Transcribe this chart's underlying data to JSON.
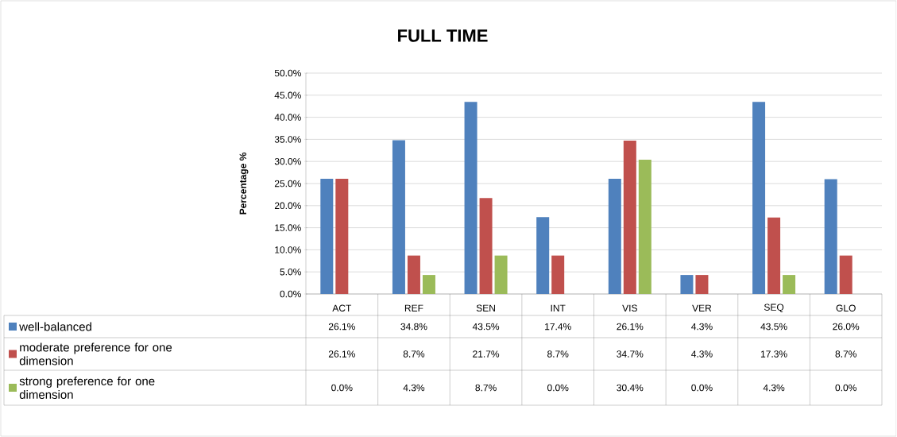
{
  "chart_data": {
    "type": "bar",
    "title": "FULL TIME",
    "ylabel": "Percentage %",
    "categories": [
      "ACT",
      "REF",
      "SEN",
      "INT",
      "VIS",
      "VER",
      "SEQ",
      "GLO"
    ],
    "series": [
      {
        "name": "well-balanced",
        "color": "#4f81bd",
        "values": [
          26.1,
          34.8,
          43.5,
          17.4,
          26.1,
          4.3,
          43.5,
          26.0
        ],
        "value_labels": [
          "26.1%",
          "34.8%",
          "43.5%",
          "17.4%",
          "26.1%",
          "4.3%",
          "43.5%",
          "26.0%"
        ]
      },
      {
        "name": "moderate preference for one dimension",
        "color": "#c0504d",
        "values": [
          26.1,
          8.7,
          21.7,
          8.7,
          34.7,
          4.3,
          17.3,
          8.7
        ],
        "value_labels": [
          "26.1%",
          "8.7%",
          "21.7%",
          "8.7%",
          "34.7%",
          "4.3%",
          "17.3%",
          "8.7%"
        ]
      },
      {
        "name": "strong preference for one dimension",
        "color": "#9bbb59",
        "values": [
          0.0,
          4.3,
          8.7,
          0.0,
          30.4,
          0.0,
          4.3,
          0.0
        ],
        "value_labels": [
          "0.0%",
          "4.3%",
          "8.7%",
          "0.0%",
          "30.4%",
          "0.0%",
          "4.3%",
          "0.0%"
        ]
      }
    ],
    "ylim": [
      0,
      50
    ],
    "yticks": [
      {
        "value": 0,
        "label": "0.0%"
      },
      {
        "value": 5,
        "label": "5.0%"
      },
      {
        "value": 10,
        "label": "10.0%"
      },
      {
        "value": 15,
        "label": "15.0%"
      },
      {
        "value": 20,
        "label": "20.0%"
      },
      {
        "value": 25,
        "label": "25.0%"
      },
      {
        "value": 30,
        "label": "30.0%"
      },
      {
        "value": 35,
        "label": "35.0%"
      },
      {
        "value": 40,
        "label": "40.0%"
      },
      {
        "value": 45,
        "label": "45.0%"
      },
      {
        "value": 50,
        "label": "50.0%"
      }
    ],
    "grid": "y",
    "legend": "bottom"
  }
}
